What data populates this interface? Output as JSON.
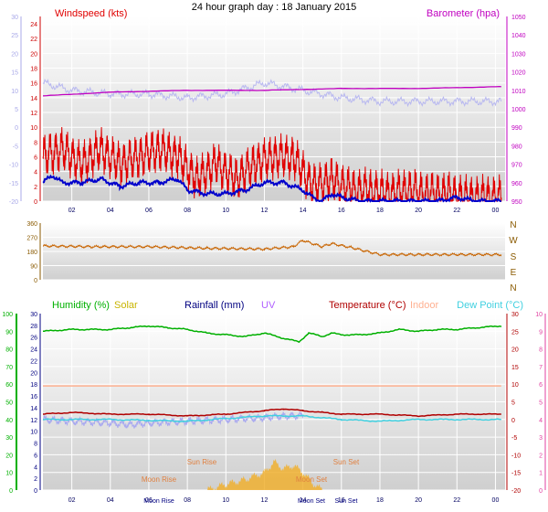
{
  "title": "24 hour graph day : 18 January 2015",
  "colors": {
    "windspeed": "#e00000",
    "wind_avg": "#0000cc",
    "temp_left_axis": "#a8a8e8",
    "barometer": "#c000c0",
    "direction": "#c86400",
    "humidity": "#00b000",
    "solar": "#c8b400",
    "rainfall": "#000080",
    "uv": "#b060ff",
    "temperature": "#b00000",
    "indoor": "#ffb090",
    "dewpoint": "#40d0e0",
    "moon": "#e08040",
    "solar_fill": "#f0b030",
    "direction_axis": "#8a5a00"
  },
  "chart_data": [
    {
      "type": "line",
      "panel": "wind",
      "title": "",
      "legend": {
        "windspeed": "Windspeed (kts)",
        "barometer": "Barometer (hpa)"
      },
      "x_ticks": [
        "02",
        "04",
        "06",
        "08",
        "10",
        "12",
        "14",
        "16",
        "18",
        "20",
        "22",
        "00"
      ],
      "y_left_ticks": [
        "0",
        "2",
        "4",
        "6",
        "8",
        "10",
        "12",
        "14",
        "16",
        "18",
        "20",
        "22",
        "24"
      ],
      "y_left2_ticks": [
        "-20",
        "-15",
        "-10",
        "-5",
        "0",
        "5",
        "10",
        "15",
        "20",
        "25",
        "30"
      ],
      "y_right_ticks": [
        "950",
        "960",
        "970",
        "980",
        "990",
        "1000",
        "1010",
        "1020",
        "1030",
        "1040",
        "1050"
      ],
      "ylim_left": [
        0,
        25
      ],
      "ylim_left2": [
        -20,
        30
      ],
      "ylim_right": [
        950,
        1050
      ],
      "xlim_hours": [
        0.5,
        24.5
      ],
      "series": [
        {
          "name": "Windspeed (kts)",
          "axis": "left",
          "hours": [
            0.5,
            1.5,
            2.5,
            3.5,
            4.5,
            5.5,
            6.5,
            7.5,
            8.5,
            9.5,
            10.5,
            11.5,
            12.5,
            13.5,
            14.5,
            15.5,
            16.5,
            17.5,
            18.5,
            19.5,
            20.5,
            21.5,
            22.5,
            23.5,
            24.3
          ],
          "values": [
            6,
            7,
            5,
            7,
            5,
            6,
            7,
            6,
            3,
            5,
            3,
            5,
            6,
            6,
            2,
            3,
            1.5,
            1.5,
            1,
            1.5,
            1,
            1,
            0.5,
            0.5,
            0.5
          ]
        },
        {
          "name": "Average windspeed",
          "axis": "left",
          "hours": [
            0.5,
            1,
            1.5,
            2.5,
            3.5,
            4.5,
            5.5,
            6.5,
            7.5,
            8,
            9,
            10,
            11,
            12,
            13,
            14,
            14.5,
            15,
            15.5,
            16,
            17,
            18,
            19,
            20,
            21,
            22,
            23,
            24.3
          ],
          "values": [
            2.5,
            3.5,
            2.5,
            2.5,
            3,
            2,
            2.5,
            2.5,
            3,
            1.5,
            1,
            1,
            1.5,
            2.5,
            2.5,
            1.5,
            0.5,
            0,
            1,
            0.5,
            0,
            0,
            0,
            0,
            0,
            0.5,
            0,
            0
          ]
        },
        {
          "name": "Temperature (left scale)",
          "axis": "left2",
          "hours": [
            0.5,
            2,
            4,
            6,
            8,
            10,
            12,
            13,
            14,
            15,
            16,
            18,
            20,
            22,
            24.3
          ],
          "values": [
            12,
            10,
            9,
            9,
            8,
            9,
            12,
            11,
            10,
            9,
            8,
            7,
            7,
            7,
            7
          ]
        },
        {
          "name": "Barometer (hpa)",
          "axis": "right",
          "hours": [
            0.5,
            4,
            8,
            12,
            16,
            20,
            24.3
          ],
          "values": [
            1007,
            1009,
            1010,
            1010,
            1011,
            1011,
            1012
          ]
        }
      ]
    },
    {
      "type": "scatter",
      "panel": "direction",
      "title": "",
      "y_ticks": [
        "360",
        "270",
        "180",
        "90",
        "0"
      ],
      "compass": [
        "N",
        "W",
        "S",
        "E",
        "N"
      ],
      "ylim": [
        0,
        360
      ],
      "xlim_hours": [
        0.5,
        24.5
      ],
      "series": [
        {
          "name": "Wind direction",
          "hours": [
            0.5,
            3,
            6,
            9,
            12,
            13.5,
            14,
            15,
            15.5,
            16.5,
            18,
            20,
            22,
            24.3
          ],
          "values": [
            215,
            210,
            210,
            200,
            195,
            210,
            250,
            210,
            230,
            205,
            160,
            160,
            160,
            160
          ]
        }
      ]
    },
    {
      "type": "line",
      "panel": "temperature",
      "title": "",
      "legend": {
        "humidity": "Humidity (%)",
        "solar": "Solar",
        "rainfall": "Rainfall (mm)",
        "uv": "UV",
        "temperature": "Temperature (°C)",
        "indoor": "Indoor",
        "dewpoint": "Dew Point (°C)"
      },
      "x_ticks": [
        "02",
        "04",
        "06",
        "08",
        "10",
        "12",
        "14",
        "16",
        "18",
        "20",
        "22",
        "00"
      ],
      "y_far_left_ticks": [
        "0",
        "10",
        "20",
        "30",
        "40",
        "50",
        "60",
        "70",
        "80",
        "90",
        "100"
      ],
      "y_near_left_ticks": [
        "0",
        "2",
        "4",
        "6",
        "8",
        "10",
        "12",
        "14",
        "16",
        "18",
        "20",
        "22",
        "24",
        "26",
        "28",
        "30"
      ],
      "y_right_ticks": [
        "-20",
        "-15",
        "-10",
        "-5",
        "0",
        "5",
        "10",
        "15",
        "20",
        "25",
        "30"
      ],
      "y_far_right_ticks": [
        "0",
        "1",
        "2",
        "3",
        "4",
        "5",
        "6",
        "7",
        "8",
        "9",
        "10"
      ],
      "ylim_humidity": [
        0,
        100
      ],
      "ylim_temp": [
        -20,
        30
      ],
      "xlim_hours": [
        0.5,
        24.5
      ],
      "annotations": [
        "Moon Rise",
        "Sun Rise",
        "Moon Set",
        "Sun Set"
      ],
      "series": [
        {
          "name": "Humidity (%)",
          "axis": "humidity",
          "hours": [
            0.5,
            2,
            4,
            5,
            6,
            7,
            8,
            9,
            10,
            11,
            12,
            13,
            13.8,
            14.3,
            15,
            15.5,
            16,
            17,
            18,
            19,
            20,
            21,
            22,
            23,
            24.3
          ],
          "values": [
            90,
            91,
            91,
            92,
            93,
            92,
            91,
            89,
            88,
            87,
            89,
            86,
            84,
            89,
            87,
            89,
            88,
            88,
            89,
            91,
            90,
            91,
            91,
            92,
            93
          ]
        },
        {
          "name": "Temperature (°C)",
          "axis": "temp",
          "hours": [
            0.5,
            2,
            4,
            6,
            8,
            10,
            12,
            13,
            14,
            15,
            16,
            18,
            20,
            22,
            24.3
          ],
          "values": [
            1.5,
            2,
            1.5,
            1.5,
            1,
            1.5,
            2.5,
            3,
            2.5,
            2,
            1.5,
            1.5,
            1,
            1.5,
            1.5
          ]
        },
        {
          "name": "Indoor",
          "axis": "temp",
          "hours": [
            0.5,
            24.3
          ],
          "values": [
            9.5,
            9.5
          ]
        },
        {
          "name": "Dew Point (°C)",
          "axis": "temp",
          "hours": [
            0.5,
            4,
            8,
            12,
            14,
            16,
            18,
            20,
            24.3
          ],
          "values": [
            0,
            0,
            -0.5,
            1,
            1,
            0,
            -0.5,
            0,
            0
          ]
        },
        {
          "name": "UV",
          "axis": "temp",
          "hours": [
            0.5,
            2,
            4,
            5,
            6,
            8,
            10,
            12,
            13,
            14
          ],
          "values": [
            0,
            -0.5,
            -1,
            -1.5,
            -1,
            -0.5,
            0,
            0.5,
            1,
            1
          ]
        },
        {
          "name": "Solar",
          "axis": "solar",
          "hours": [
            9,
            10,
            11,
            12,
            12.5,
            13,
            13.5,
            14,
            14.5,
            15
          ],
          "values": [
            0,
            0.8,
            1.5,
            2.5,
            4,
            3,
            3.5,
            2.5,
            1,
            0
          ]
        }
      ]
    }
  ]
}
